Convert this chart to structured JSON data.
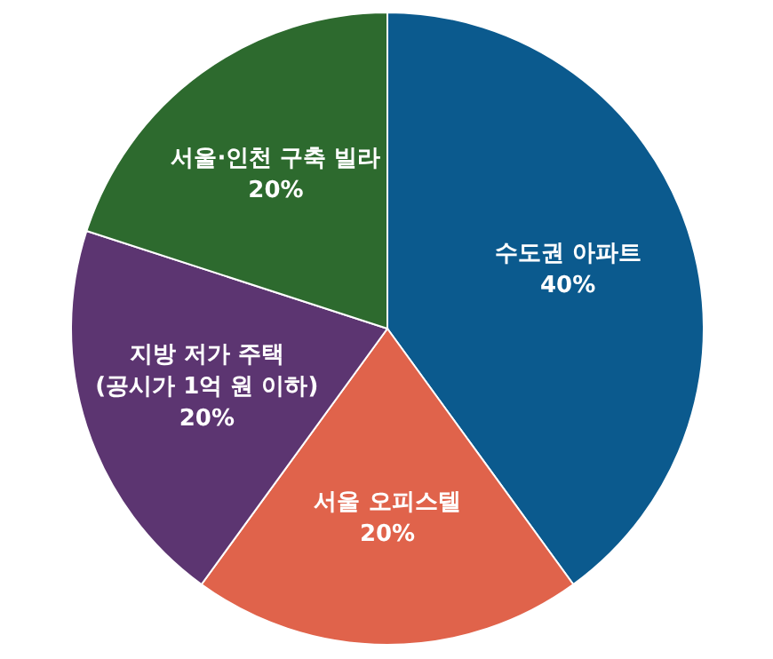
{
  "chart_data": {
    "type": "pie",
    "categories": [
      "수도권 아파트",
      "서울 오피스텔",
      "지방 저가 주택\n(공시가 1억 원 이하)",
      "서울·인천 구축 빌라"
    ],
    "values": [
      40,
      20,
      20,
      20
    ],
    "colors": [
      "#0b5a8e",
      "#e0634b",
      "#5c3571",
      "#2d6a2e"
    ],
    "value_labels": [
      "40%",
      "20%",
      "20%",
      "20%"
    ]
  }
}
